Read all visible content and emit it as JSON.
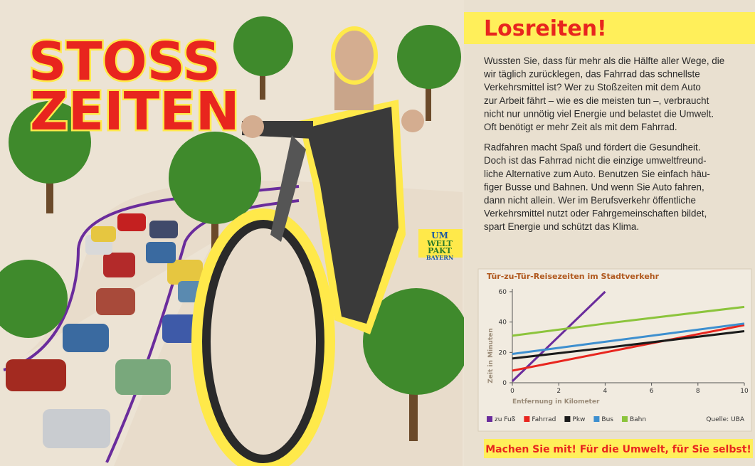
{
  "poster": {
    "headline": [
      "STOSS",
      "ZEITEN"
    ],
    "logo": [
      "UM",
      "WELT",
      "PAKT",
      "BAYERN"
    ],
    "title": "Losreiten!",
    "paragraphs": [
      [
        "Wussten Sie, dass für mehr als die Hälfte aller Wege, die",
        "wir täglich zurücklegen, das Fahrrad das schnellste",
        "Verkehrsmittel ist? Wer zu Stoßzeiten mit dem Auto",
        "zur Arbeit fährt – wie es die meisten tun –, verbraucht",
        "nicht nur unnötig viel Energie und belastet die Umwelt.",
        "Oft benötigt er mehr Zeit als mit dem Fahrrad."
      ],
      [
        "Radfahren macht Spaß und fördert die Gesundheit.",
        "Doch ist das Fahrrad nicht die einzige umweltfreund-",
        "liche Alternative zum Auto. Benutzen Sie einfach häu-",
        "figer Busse und Bahnen. Und wenn Sie Auto fahren,",
        "dann nicht allein. Wer im Berufsverkehr öffentliche",
        "Verkehrsmittel nutzt oder Fahrgemeinschaften bildet,",
        "spart Energie und schützt das Klima."
      ]
    ],
    "footer": "Machen Sie mit! Für die Umwelt, für Sie selbst!"
  },
  "chart_data": {
    "type": "line",
    "title": "Tür-zu-Tür-Reisezeiten im Stadtverkehr",
    "xlabel": "Entfernung in Kilometer",
    "ylabel": "Zeit in Minuten",
    "source": "Quelle: UBA",
    "x": [
      0,
      4,
      10
    ],
    "xlim": [
      0,
      10
    ],
    "xticks": [
      0,
      2,
      4,
      6,
      8,
      10
    ],
    "ylim": [
      0,
      60
    ],
    "yticks": [
      0,
      20,
      40,
      60
    ],
    "series": [
      {
        "name": "zu Fuß",
        "color": "#6a2c9c",
        "values": [
          1,
          60,
          null
        ]
      },
      {
        "name": "Fahrrad",
        "color": "#e8251e",
        "values": [
          8,
          20,
          38
        ]
      },
      {
        "name": "Pkw",
        "color": "#1a1a1a",
        "values": [
          16,
          23,
          34
        ]
      },
      {
        "name": "Bus",
        "color": "#3d8fcf",
        "values": [
          19,
          27,
          39
        ]
      },
      {
        "name": "Bahn",
        "color": "#8cc43c",
        "values": [
          31,
          39,
          50
        ]
      }
    ]
  }
}
